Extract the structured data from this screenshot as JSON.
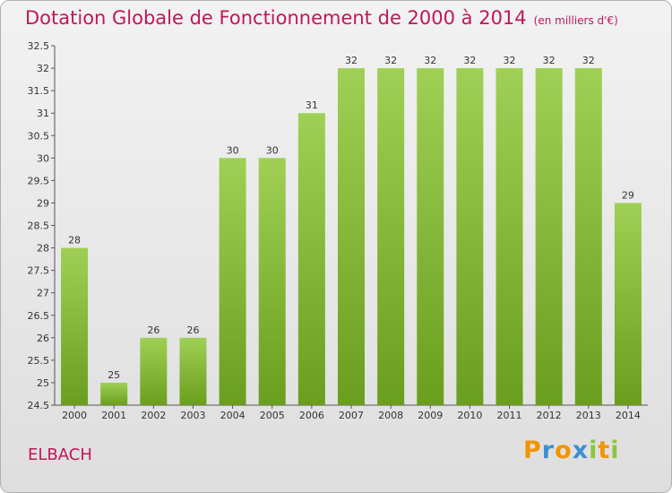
{
  "header": {
    "title": "Dotation Globale de Fonctionnement de 2000 à 2014",
    "subtitle": "(en milliers d'€)"
  },
  "commune": "ELBACH",
  "logo": {
    "text": "Proxiti"
  },
  "colors": {
    "bar_top": "#9fd055",
    "bar_bottom": "#6a9e1e",
    "title": "#c0175a"
  },
  "chart_data": {
    "type": "bar",
    "title": "Dotation Globale de Fonctionnement de 2000 à 2014",
    "subtitle": "(en milliers d'€)",
    "xlabel": "",
    "ylabel": "",
    "categories": [
      "2000",
      "2001",
      "2002",
      "2003",
      "2004",
      "2005",
      "2006",
      "2007",
      "2008",
      "2009",
      "2010",
      "2011",
      "2012",
      "2013",
      "2014"
    ],
    "values": [
      28,
      25,
      26,
      26,
      30,
      30,
      31,
      32,
      32,
      32,
      32,
      32,
      32,
      32,
      29
    ],
    "ylim": [
      24.5,
      32.5
    ],
    "yticks": [
      "24.5",
      "25",
      "25.5",
      "26",
      "26.5",
      "27",
      "27.5",
      "28",
      "28.5",
      "29",
      "29.5",
      "30",
      "30.5",
      "31",
      "31.5",
      "32",
      "32.5"
    ],
    "grid": false,
    "legend": "none"
  }
}
